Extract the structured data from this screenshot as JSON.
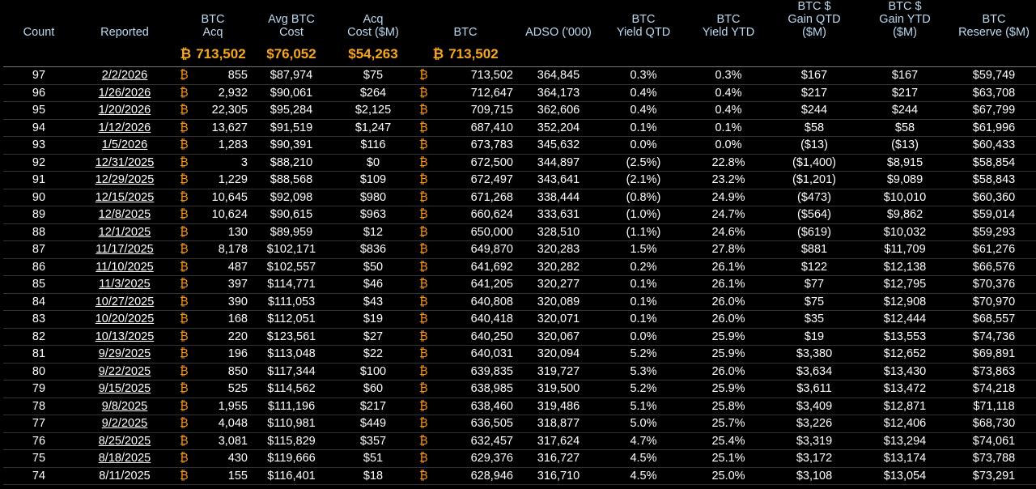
{
  "headers": {
    "count": "Count",
    "reported": "Reported",
    "btc_acq": [
      "BTC",
      "Acq"
    ],
    "avg_cost": [
      "Avg BTC",
      "Cost"
    ],
    "acq_cost": [
      "Acq",
      "Cost ($M)"
    ],
    "btc": "BTC",
    "adso": "ADSO ('000)",
    "yield_qtd": [
      "BTC",
      "Yield QTD"
    ],
    "yield_ytd": [
      "BTC",
      "Yield YTD"
    ],
    "gain_qtd": [
      "BTC $",
      "Gain QTD",
      "($M)"
    ],
    "gain_ytd": [
      "BTC $",
      "Gain YTD",
      "($M)"
    ],
    "reserve": [
      "BTC",
      "Reserve ($M)"
    ]
  },
  "btc_symbol": "₿",
  "totals": {
    "btc_acq": "713,502",
    "avg_cost": "$76,052",
    "acq_cost": "$54,263",
    "btc": "713,502"
  },
  "rows": [
    [
      "97",
      "2/2/2026",
      "855",
      "$87,974",
      "$75",
      "713,502",
      "364,845",
      "0.3%",
      "0.3%",
      "$167",
      "$167",
      "$59,749"
    ],
    [
      "96",
      "1/26/2026",
      "2,932",
      "$90,061",
      "$264",
      "712,647",
      "364,173",
      "0.4%",
      "0.4%",
      "$217",
      "$217",
      "$63,708"
    ],
    [
      "95",
      "1/20/2026",
      "22,305",
      "$95,284",
      "$2,125",
      "709,715",
      "362,606",
      "0.4%",
      "0.4%",
      "$244",
      "$244",
      "$67,799"
    ],
    [
      "94",
      "1/12/2026",
      "13,627",
      "$91,519",
      "$1,247",
      "687,410",
      "352,204",
      "0.1%",
      "0.1%",
      "$58",
      "$58",
      "$61,996"
    ],
    [
      "93",
      "1/5/2026",
      "1,283",
      "$90,391",
      "$116",
      "673,783",
      "345,632",
      "0.0%",
      "0.0%",
      "($13)",
      "($13)",
      "$60,433"
    ],
    [
      "92",
      "12/31/2025",
      "3",
      "$88,210",
      "$0",
      "672,500",
      "344,897",
      "(2.5%)",
      "22.8%",
      "($1,400)",
      "$8,915",
      "$58,854"
    ],
    [
      "91",
      "12/29/2025",
      "1,229",
      "$88,568",
      "$109",
      "672,497",
      "343,641",
      "(2.1%)",
      "23.2%",
      "($1,201)",
      "$9,089",
      "$58,843"
    ],
    [
      "90",
      "12/15/2025",
      "10,645",
      "$92,098",
      "$980",
      "671,268",
      "338,444",
      "(0.8%)",
      "24.9%",
      "($473)",
      "$10,010",
      "$60,360"
    ],
    [
      "89",
      "12/8/2025",
      "10,624",
      "$90,615",
      "$963",
      "660,624",
      "333,631",
      "(1.0%)",
      "24.7%",
      "($564)",
      "$9,862",
      "$59,014"
    ],
    [
      "88",
      "12/1/2025",
      "130",
      "$89,959",
      "$12",
      "650,000",
      "328,510",
      "(1.1%)",
      "24.6%",
      "($619)",
      "$10,032",
      "$59,293"
    ],
    [
      "87",
      "11/17/2025",
      "8,178",
      "$102,171",
      "$836",
      "649,870",
      "320,283",
      "1.5%",
      "27.8%",
      "$881",
      "$11,709",
      "$61,276"
    ],
    [
      "86",
      "11/10/2025",
      "487",
      "$102,557",
      "$50",
      "641,692",
      "320,282",
      "0.2%",
      "26.1%",
      "$122",
      "$12,138",
      "$66,576"
    ],
    [
      "85",
      "11/3/2025",
      "397",
      "$114,771",
      "$46",
      "641,205",
      "320,277",
      "0.1%",
      "26.1%",
      "$77",
      "$12,795",
      "$70,376"
    ],
    [
      "84",
      "10/27/2025",
      "390",
      "$111,053",
      "$43",
      "640,808",
      "320,089",
      "0.1%",
      "26.0%",
      "$75",
      "$12,908",
      "$70,970"
    ],
    [
      "83",
      "10/20/2025",
      "168",
      "$112,051",
      "$19",
      "640,418",
      "320,071",
      "0.1%",
      "26.0%",
      "$35",
      "$12,444",
      "$68,557"
    ],
    [
      "82",
      "10/13/2025",
      "220",
      "$123,561",
      "$27",
      "640,250",
      "320,067",
      "0.0%",
      "25.9%",
      "$19",
      "$13,553",
      "$74,736"
    ],
    [
      "81",
      "9/29/2025",
      "196",
      "$113,048",
      "$22",
      "640,031",
      "320,094",
      "5.2%",
      "25.9%",
      "$3,380",
      "$12,652",
      "$69,891"
    ],
    [
      "80",
      "9/22/2025",
      "850",
      "$117,344",
      "$100",
      "639,835",
      "319,727",
      "5.3%",
      "26.0%",
      "$3,634",
      "$13,430",
      "$73,863"
    ],
    [
      "79",
      "9/15/2025",
      "525",
      "$114,562",
      "$60",
      "638,985",
      "319,500",
      "5.2%",
      "25.9%",
      "$3,611",
      "$13,472",
      "$74,218"
    ],
    [
      "78",
      "9/8/2025",
      "1,955",
      "$111,196",
      "$217",
      "638,460",
      "319,486",
      "5.1%",
      "25.8%",
      "$3,409",
      "$12,871",
      "$71,118"
    ],
    [
      "77",
      "9/2/2025",
      "4,048",
      "$110,981",
      "$449",
      "636,505",
      "318,877",
      "5.0%",
      "25.7%",
      "$3,226",
      "$12,406",
      "$68,730"
    ],
    [
      "76",
      "8/25/2025",
      "3,081",
      "$115,829",
      "$357",
      "632,457",
      "317,624",
      "4.7%",
      "25.4%",
      "$3,319",
      "$13,294",
      "$74,061"
    ],
    [
      "75",
      "8/18/2025",
      "430",
      "$119,666",
      "$51",
      "629,376",
      "316,727",
      "4.5%",
      "25.1%",
      "$3,172",
      "$13,174",
      "$73,788"
    ],
    [
      "74",
      "8/11/2025",
      "155",
      "$116,401",
      "$18",
      "628,946",
      "316,710",
      "4.5%",
      "25.0%",
      "$3,108",
      "$13,054",
      "$73,291"
    ]
  ]
}
